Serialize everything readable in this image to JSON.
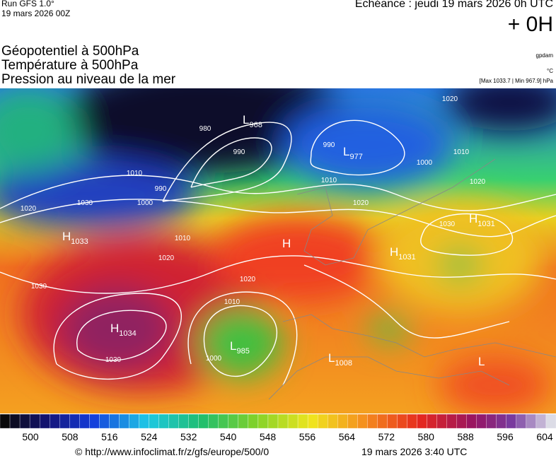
{
  "header": {
    "run": "Run GFS 1.0°",
    "run_date": "19 mars 2026 00Z",
    "valid": "Echéance : jeudi 19 mars 2026 0h UTC",
    "lead": "+ 0H",
    "titles": [
      "Géopotentiel à 500hPa",
      "Température à 500hPa",
      "Pression au niveau de la mer"
    ],
    "unit_geopotential": "gpdam",
    "unit_temperature": "°C",
    "extremes": "[Max 1033.7 | Min 967.9] hPa"
  },
  "map": {
    "pressure_centers": [
      {
        "type": "H",
        "value": 1033
      },
      {
        "type": "L",
        "value": 968
      },
      {
        "type": "L",
        "value": 977
      },
      {
        "type": "H",
        "value": 1031
      },
      {
        "type": "H",
        "value": 1031
      },
      {
        "type": "H"
      },
      {
        "type": "H",
        "value": 1034
      },
      {
        "type": "L",
        "value": 985
      },
      {
        "type": "L",
        "value": 1008
      },
      {
        "type": "L"
      }
    ],
    "isobar_labels": [
      980,
      990,
      990,
      1000,
      1010,
      1020,
      1030,
      1010,
      1020,
      1030,
      1030,
      1020,
      1010,
      1000,
      990,
      1000,
      1010,
      1020,
      1030,
      1020,
      1010,
      1020
    ]
  },
  "colorbar": {
    "ticks": [
      500,
      508,
      516,
      524,
      532,
      540,
      548,
      556,
      564,
      572,
      580,
      588,
      596,
      604
    ]
  },
  "footer": {
    "source": "© http://www.infoclimat.fr/z/gfs/europe/500/0",
    "generated": "19 mars 2026  3:40 UTC"
  }
}
